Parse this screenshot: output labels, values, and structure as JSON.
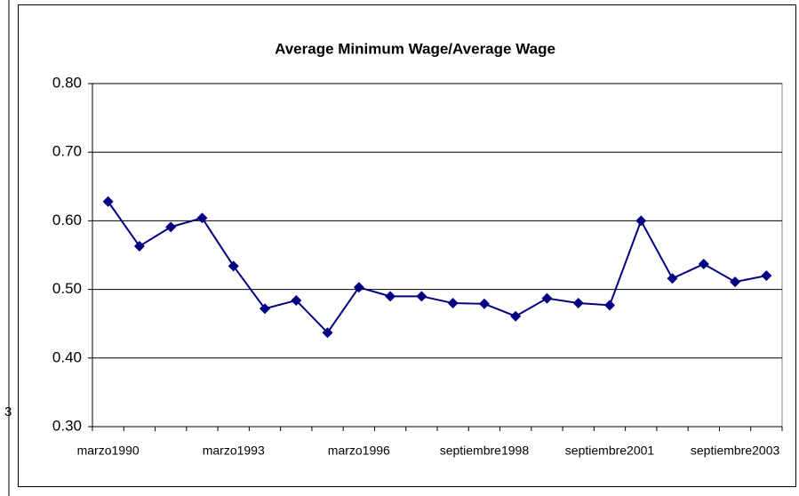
{
  "edge_text": "3",
  "chart_data": {
    "type": "line",
    "title": "Average Minimum Wage/Average Wage",
    "categories": [
      "marzo1990",
      null,
      null,
      null,
      "marzo1993",
      null,
      null,
      null,
      "marzo1996",
      null,
      null,
      null,
      "septiembre1998",
      null,
      null,
      null,
      "septiembre2001",
      null,
      null,
      null,
      "septiembre2003",
      null
    ],
    "series": [
      {
        "name": "Average Minimum Wage/Average Wage",
        "color": "#000080",
        "values": [
          0.628,
          0.563,
          0.591,
          0.604,
          0.534,
          0.472,
          0.484,
          0.437,
          0.503,
          0.49,
          0.49,
          0.48,
          0.479,
          0.461,
          0.487,
          0.48,
          0.477,
          0.6,
          0.516,
          0.537,
          0.511,
          0.52
        ]
      }
    ],
    "ylim": [
      0.3,
      0.8
    ],
    "yticks": [
      {
        "value": 0.3,
        "label": "0.30"
      },
      {
        "value": 0.4,
        "label": "0.40"
      },
      {
        "value": 0.5,
        "label": "0.50"
      },
      {
        "value": 0.6,
        "label": "0.60"
      },
      {
        "value": 0.7,
        "label": "0.70"
      },
      {
        "value": 0.8,
        "label": "0.80"
      }
    ],
    "grid": true
  }
}
